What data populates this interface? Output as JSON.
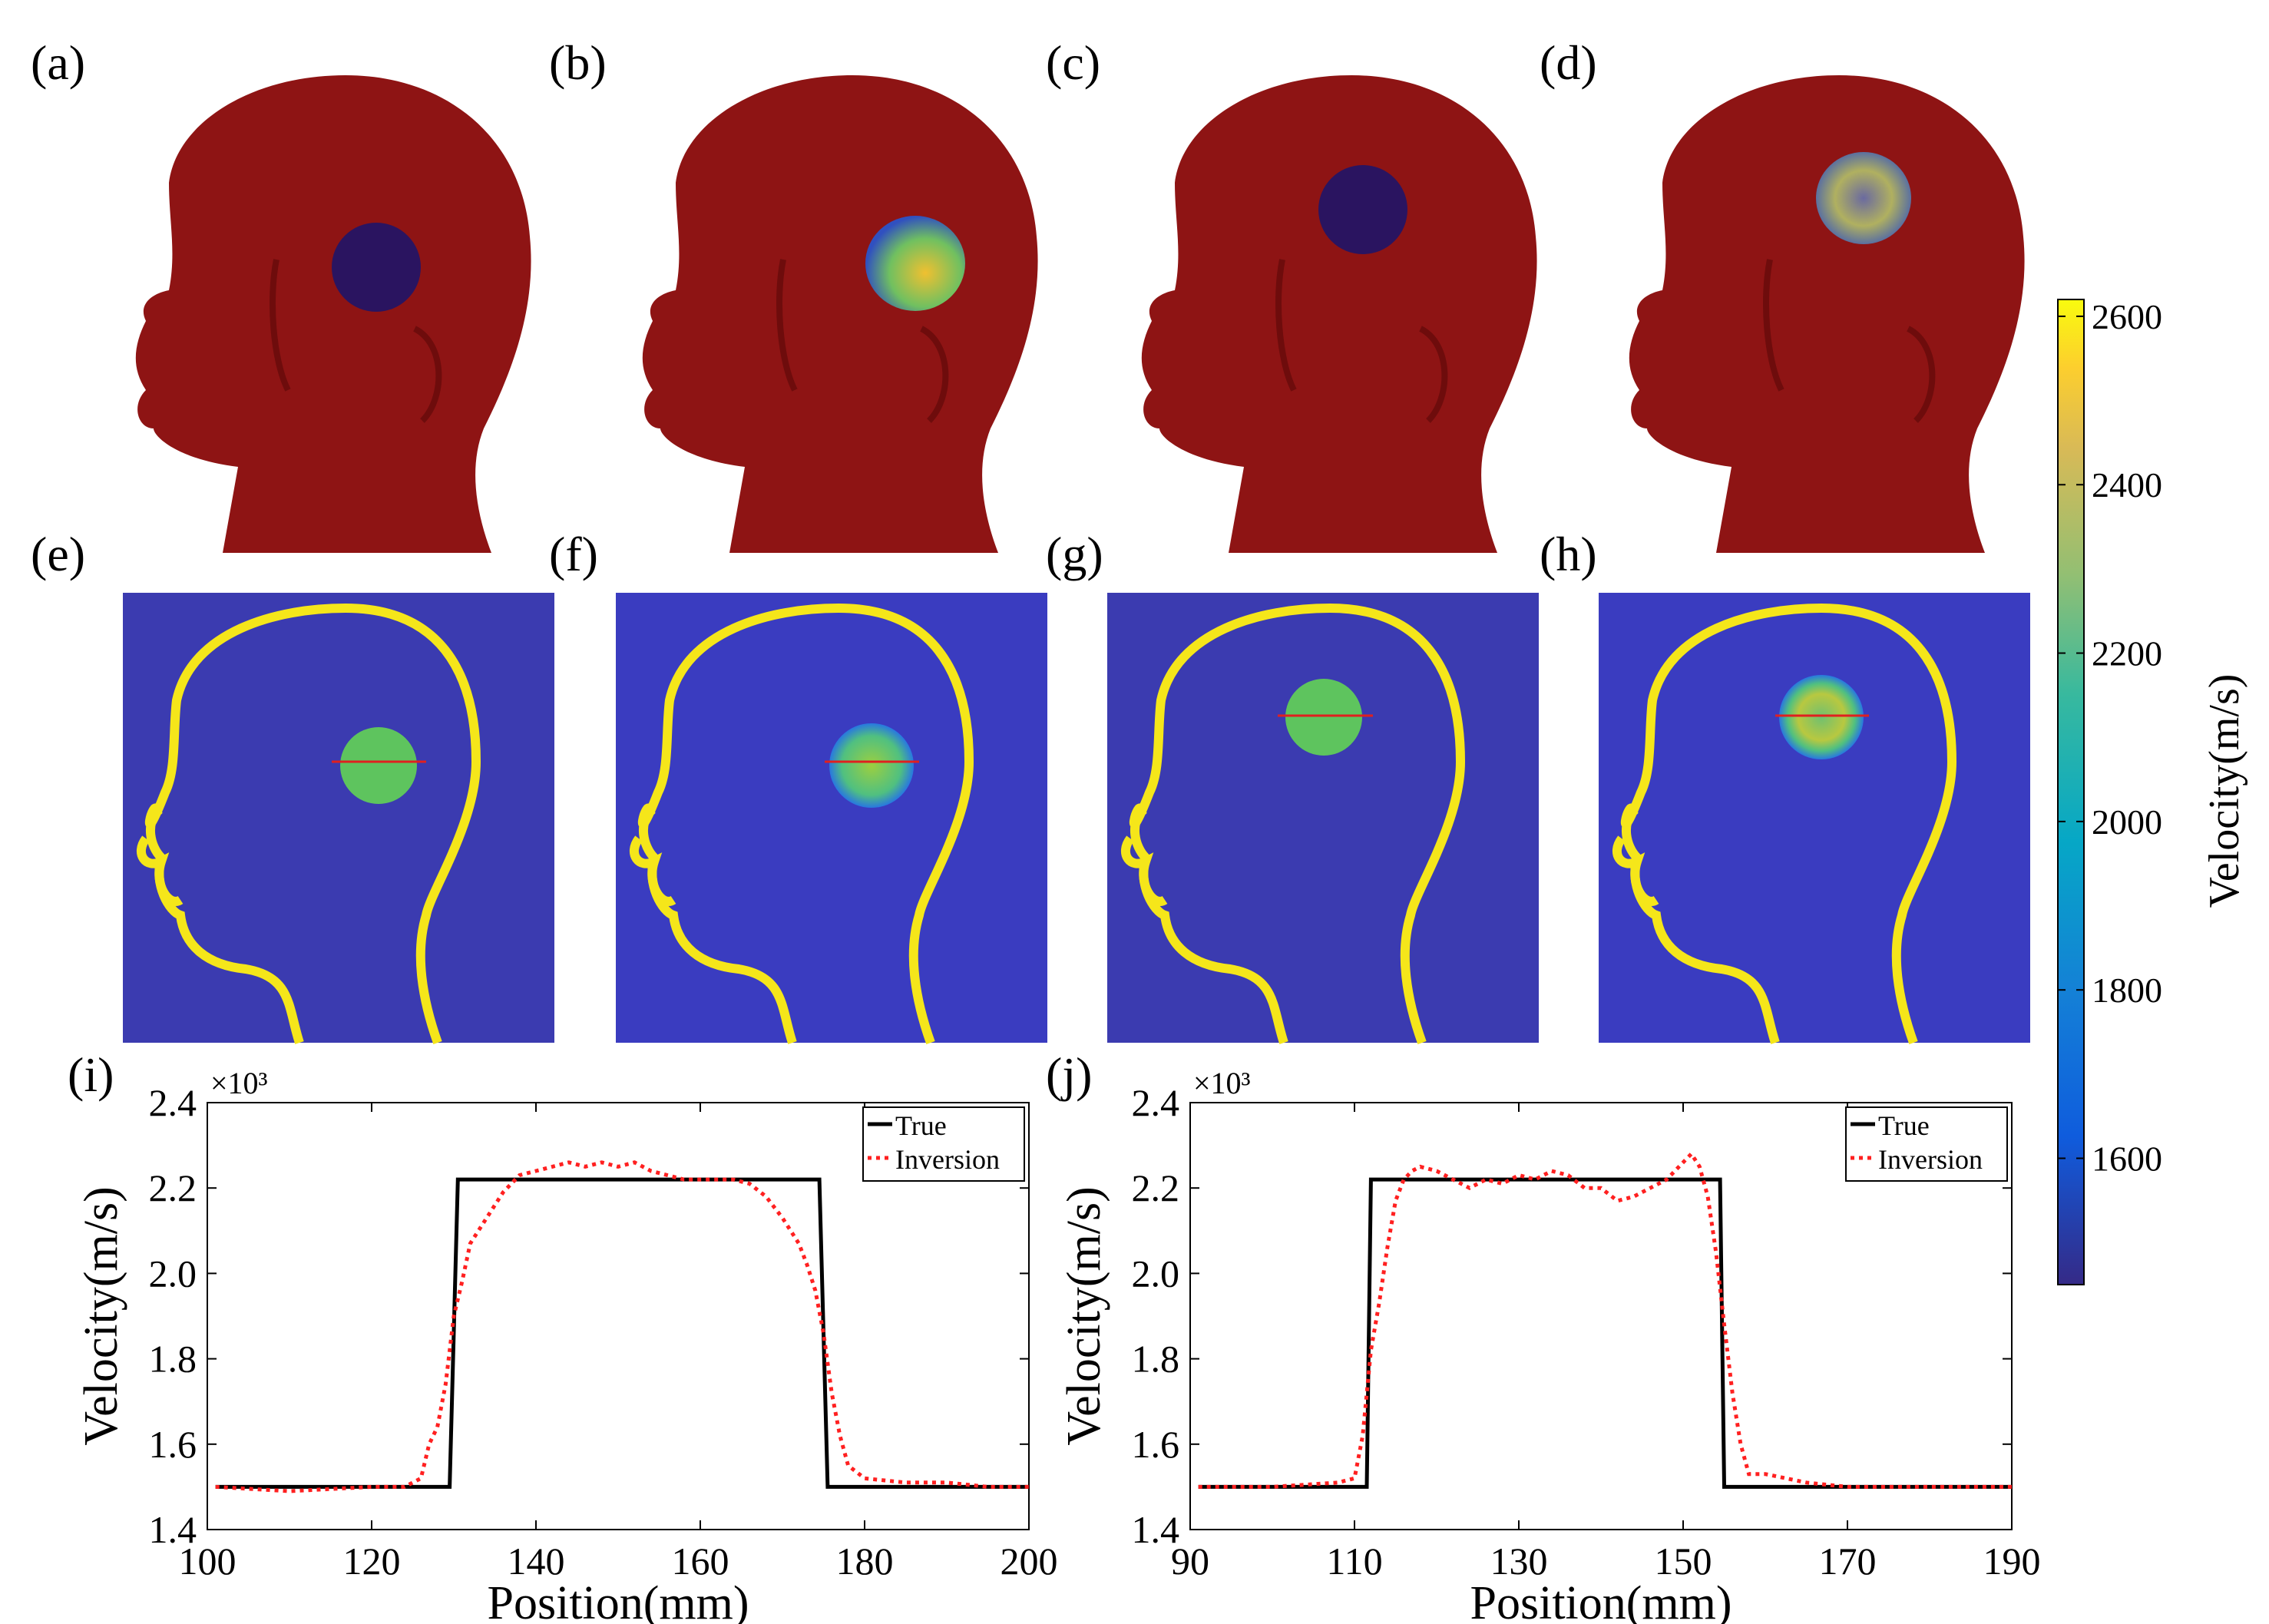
{
  "panel_labels": [
    "(a)",
    "(b)",
    "(c)",
    "(d)",
    "(e)",
    "(f)",
    "(g)",
    "(h)",
    "(i)",
    "(j)"
  ],
  "colors": {
    "head_red": "#8e1414",
    "inclusion_dark": "#2a1460",
    "background_blue": "#3b3bb0",
    "inversion_background_blue": "#3a3cc0",
    "outline_yellow": "#f5e61a",
    "inclusion_green": "#5ec45e",
    "profile_line_red": "#e0201f",
    "true_line": "#000000",
    "inversion_line": "#ff2020"
  },
  "colorbar": {
    "label": "Velocity(m/s)",
    "min": 1450,
    "max": 2620,
    "ticks": [
      "1600",
      "1800",
      "2000",
      "2200",
      "2400",
      "2600"
    ],
    "colormap": "parula"
  },
  "chart_data": [
    {
      "type": "line",
      "panel": "(i)",
      "xlabel": "Position(mm)",
      "ylabel": "Velocity(m/s)",
      "y_multiplier": "×10³",
      "xlim": [
        100,
        200
      ],
      "ylim": [
        1.4,
        2.4
      ],
      "xticks": [
        "100",
        "120",
        "140",
        "160",
        "180",
        "200"
      ],
      "yticks": [
        "1.4",
        "1.6",
        "1.8",
        "2.0",
        "2.2",
        "2.4"
      ],
      "legend_position": "top-right",
      "grid": false,
      "series": [
        {
          "name": "True",
          "style": "solid",
          "x": [
            101,
            129.5,
            130.5,
            174.5,
            175.5,
            200
          ],
          "y": [
            1.5,
            1.5,
            2.22,
            2.22,
            1.5,
            1.5
          ]
        },
        {
          "name": "Inversion",
          "style": "dotted",
          "x": [
            101,
            110,
            120,
            124,
            126,
            127,
            128,
            129,
            130,
            131,
            132,
            134,
            136,
            138,
            140,
            142,
            144,
            146,
            148,
            150,
            152,
            154,
            156,
            158,
            160,
            162,
            164,
            166,
            168,
            170,
            172,
            173,
            174,
            175,
            176,
            177,
            178,
            180,
            185,
            190,
            195,
            200
          ],
          "y": [
            1.5,
            1.49,
            1.5,
            1.5,
            1.52,
            1.6,
            1.64,
            1.74,
            1.9,
            1.98,
            2.07,
            2.13,
            2.19,
            2.23,
            2.24,
            2.25,
            2.26,
            2.25,
            2.26,
            2.25,
            2.26,
            2.24,
            2.23,
            2.22,
            2.22,
            2.22,
            2.22,
            2.21,
            2.18,
            2.13,
            2.07,
            2.02,
            1.96,
            1.86,
            1.72,
            1.62,
            1.55,
            1.52,
            1.51,
            1.51,
            1.5,
            1.5
          ]
        }
      ]
    },
    {
      "type": "line",
      "panel": "(j)",
      "xlabel": "Position(mm)",
      "ylabel": "Velocity(m/s)",
      "y_multiplier": "×10³",
      "xlim": [
        90,
        190
      ],
      "ylim": [
        1.4,
        2.4
      ],
      "xticks": [
        "90",
        "110",
        "130",
        "150",
        "170",
        "190"
      ],
      "yticks": [
        "1.4",
        "1.6",
        "1.8",
        "2.0",
        "2.2",
        "2.4"
      ],
      "legend_position": "top-right",
      "grid": false,
      "series": [
        {
          "name": "True",
          "style": "solid",
          "x": [
            91,
            111.5,
            112,
            154.5,
            155,
            190
          ],
          "y": [
            1.5,
            1.5,
            2.22,
            2.22,
            1.5,
            1.5
          ]
        },
        {
          "name": "Inversion",
          "style": "dotted",
          "x": [
            91,
            100,
            108,
            110,
            111,
            112,
            113,
            114,
            115,
            116,
            117,
            118,
            120,
            122,
            124,
            126,
            128,
            130,
            132,
            134,
            136,
            138,
            140,
            142,
            144,
            146,
            148,
            150,
            151,
            152,
            153,
            154,
            155,
            156,
            157,
            158,
            160,
            165,
            170,
            180,
            190
          ],
          "y": [
            1.5,
            1.5,
            1.51,
            1.52,
            1.62,
            1.82,
            1.93,
            2.06,
            2.17,
            2.22,
            2.24,
            2.25,
            2.24,
            2.22,
            2.2,
            2.22,
            2.21,
            2.23,
            2.22,
            2.24,
            2.23,
            2.2,
            2.2,
            2.17,
            2.18,
            2.2,
            2.22,
            2.26,
            2.28,
            2.25,
            2.18,
            2.05,
            1.88,
            1.72,
            1.6,
            1.53,
            1.53,
            1.51,
            1.5,
            1.5,
            1.5
          ]
        }
      ]
    }
  ]
}
